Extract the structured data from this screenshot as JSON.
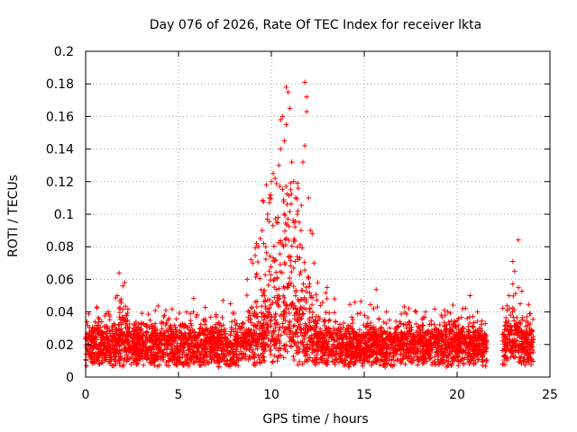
{
  "chart_data": {
    "type": "scatter",
    "title": "Day 076 of 2026, Rate Of TEC Index for receiver lkta",
    "xlabel": "GPS time / hours",
    "ylabel": "ROTI / TECUs",
    "xlim": [
      0,
      25
    ],
    "ylim": [
      0,
      0.2
    ],
    "x_ticks": [
      0,
      5,
      10,
      15,
      20,
      25
    ],
    "y_ticks": [
      0,
      0.02,
      0.04,
      0.06,
      0.08,
      0.1,
      0.12,
      0.14,
      0.16,
      0.18,
      0.2
    ],
    "x_tick_labels": [
      "0",
      "5",
      "10",
      "15",
      "20",
      "25"
    ],
    "y_tick_labels": [
      "0",
      "0.02",
      "0.04",
      "0.06",
      "0.08",
      "0.1",
      "0.12",
      "0.14",
      "0.16",
      "0.18",
      "0.2"
    ],
    "grid": true,
    "marker": "+",
    "color": "#ff0000",
    "series": [
      {
        "name": "ROTI",
        "description": "Dense band of points 0.005-0.03 TECUs across 0-21.5 h and 22.5-24 h (gap 21.6-22.4 h); enhanced activity 8.5-12.5 h peaking near 0.18",
        "points": [
          [
            2.1,
            0.058
          ],
          [
            2.0,
            0.056
          ],
          [
            1.7,
            0.05
          ],
          [
            0.6,
            0.043
          ],
          [
            4.2,
            0.037
          ],
          [
            4.5,
            0.036
          ],
          [
            5.8,
            0.04
          ],
          [
            7.4,
            0.047
          ],
          [
            7.8,
            0.045
          ],
          [
            8.7,
            0.06
          ],
          [
            8.9,
            0.072
          ],
          [
            9.0,
            0.07
          ],
          [
            9.2,
            0.082
          ],
          [
            9.4,
            0.085
          ],
          [
            9.5,
            0.09
          ],
          [
            9.7,
            0.08
          ],
          [
            9.8,
            0.1
          ],
          [
            9.9,
            0.11
          ],
          [
            10.0,
            0.12
          ],
          [
            10.1,
            0.125
          ],
          [
            10.2,
            0.122
          ],
          [
            10.3,
            0.095
          ],
          [
            10.4,
            0.13
          ],
          [
            10.5,
            0.14
          ],
          [
            10.5,
            0.158
          ],
          [
            10.6,
            0.16
          ],
          [
            10.7,
            0.145
          ],
          [
            10.8,
            0.155
          ],
          [
            10.8,
            0.178
          ],
          [
            10.9,
            0.175
          ],
          [
            11.0,
            0.165
          ],
          [
            11.1,
            0.132
          ],
          [
            11.2,
            0.12
          ],
          [
            11.3,
            0.11
          ],
          [
            11.4,
            0.1
          ],
          [
            11.5,
            0.095
          ],
          [
            11.6,
            0.09
          ],
          [
            11.7,
            0.132
          ],
          [
            11.8,
            0.142
          ],
          [
            11.8,
            0.181
          ],
          [
            11.9,
            0.172
          ],
          [
            11.9,
            0.163
          ],
          [
            12.0,
            0.11
          ],
          [
            12.1,
            0.09
          ],
          [
            12.2,
            0.088
          ],
          [
            12.3,
            0.07
          ],
          [
            12.5,
            0.058
          ],
          [
            13.0,
            0.055
          ],
          [
            13.4,
            0.048
          ],
          [
            14.5,
            0.046
          ],
          [
            15.5,
            0.042
          ],
          [
            16.2,
            0.04
          ],
          [
            17.8,
            0.04
          ],
          [
            18.3,
            0.04
          ],
          [
            19.5,
            0.04
          ],
          [
            20.3,
            0.042
          ],
          [
            20.7,
            0.05
          ],
          [
            21.1,
            0.04
          ],
          [
            22.8,
            0.05
          ],
          [
            23.0,
            0.071
          ],
          [
            23.1,
            0.065
          ],
          [
            23.4,
            0.045
          ],
          [
            23.5,
            0.035
          ],
          [
            23.9,
            0.03
          ]
        ]
      }
    ]
  }
}
